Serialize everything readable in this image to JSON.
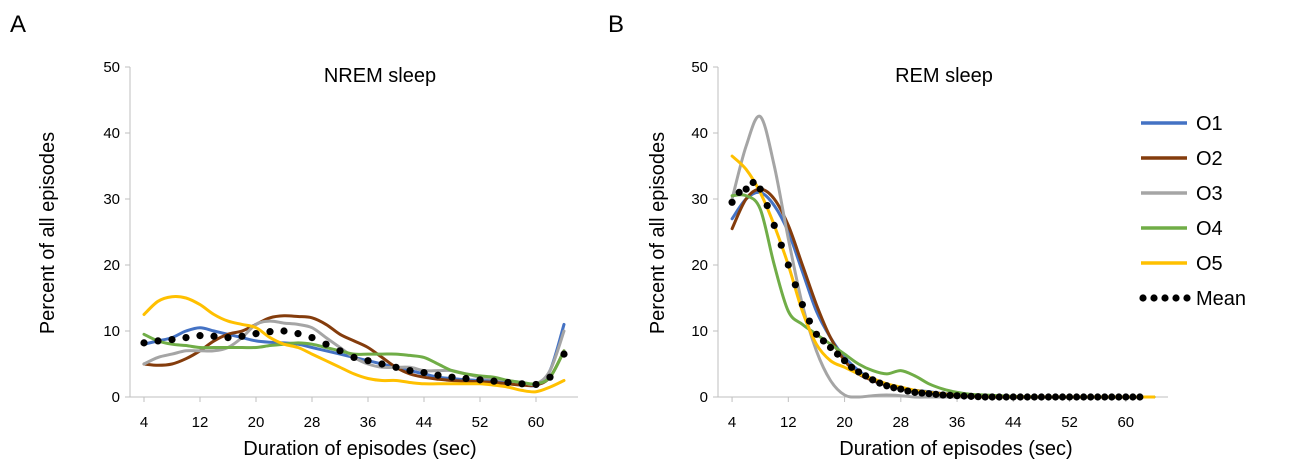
{
  "panels": [
    {
      "letter": "A",
      "title": "NREM sleep"
    },
    {
      "letter": "B",
      "title": "REM sleep"
    }
  ],
  "legend": [
    "O1",
    "O2",
    "O3",
    "O4",
    "O5",
    "Mean"
  ],
  "colors": {
    "O1": "#4472C4",
    "O2": "#843C0C",
    "O3": "#A5A5A5",
    "O4": "#70AD47",
    "O5": "#FFC000",
    "Mean": "#000000"
  },
  "chart_data": [
    {
      "type": "line",
      "title": "NREM sleep",
      "xlabel": "Duration of  episodes (sec)",
      "ylabel": "Percent of all episodes",
      "xlim": [
        2,
        66
      ],
      "ylim": [
        0,
        50
      ],
      "xticks": [
        4,
        12,
        20,
        28,
        36,
        44,
        52,
        60
      ],
      "yticks": [
        0,
        10,
        20,
        30,
        40,
        50
      ],
      "series": [
        {
          "name": "O1",
          "x": [
            4,
            6,
            8,
            10,
            12,
            14,
            16,
            18,
            20,
            22,
            24,
            26,
            28,
            30,
            32,
            34,
            36,
            38,
            40,
            42,
            44,
            46,
            48,
            50,
            52,
            54,
            56,
            58,
            60,
            62,
            64
          ],
          "y": [
            8,
            8.5,
            9,
            10,
            10.5,
            10,
            9.5,
            9,
            8.5,
            8.3,
            8.2,
            8,
            7.5,
            7,
            6.5,
            6,
            5.5,
            5,
            4.5,
            4,
            3.5,
            3,
            2.8,
            2.6,
            2.5,
            2.4,
            2.3,
            2,
            1.8,
            4,
            11
          ]
        },
        {
          "name": "O2",
          "x": [
            4,
            6,
            8,
            10,
            12,
            14,
            16,
            18,
            20,
            22,
            24,
            26,
            28,
            30,
            32,
            34,
            36,
            38,
            40,
            42,
            44,
            46,
            48,
            50,
            52,
            54,
            56,
            58,
            60,
            62,
            64
          ],
          "y": [
            5,
            4.8,
            5,
            5.8,
            7,
            8.5,
            9.5,
            10,
            11,
            12,
            12.3,
            12.2,
            12,
            11,
            9.5,
            8.5,
            7.5,
            6,
            4.5,
            3.5,
            3,
            2.7,
            2.5,
            2.4,
            2.3,
            2.2,
            2,
            1.8,
            1.8,
            3,
            7
          ]
        },
        {
          "name": "O3",
          "x": [
            4,
            6,
            8,
            10,
            12,
            14,
            16,
            18,
            20,
            22,
            24,
            26,
            28,
            30,
            32,
            34,
            36,
            38,
            40,
            42,
            44,
            46,
            48,
            50,
            52,
            54,
            56,
            58,
            60,
            62,
            64
          ],
          "y": [
            5,
            6,
            6.5,
            7,
            7,
            7,
            7.5,
            9,
            11,
            11.5,
            11.2,
            11,
            10.5,
            9,
            7.5,
            6,
            5,
            4.5,
            4.5,
            4.5,
            4,
            4,
            4,
            3.5,
            3,
            2.8,
            2.5,
            2.2,
            2,
            4,
            10
          ]
        },
        {
          "name": "O4",
          "x": [
            4,
            6,
            8,
            10,
            12,
            14,
            16,
            18,
            20,
            22,
            24,
            26,
            28,
            30,
            32,
            34,
            36,
            38,
            40,
            42,
            44,
            46,
            48,
            50,
            52,
            54,
            56,
            58,
            60,
            62,
            64
          ],
          "y": [
            9.5,
            8.5,
            8,
            7.8,
            7.5,
            7.5,
            7.5,
            7.5,
            7.5,
            7.8,
            8,
            8.2,
            8,
            7.5,
            7,
            6.5,
            6.5,
            6.5,
            6.5,
            6.3,
            6,
            5,
            4,
            3.5,
            3.2,
            3,
            2.5,
            2.2,
            2,
            3,
            7
          ]
        },
        {
          "name": "O5",
          "x": [
            4,
            6,
            8,
            10,
            12,
            14,
            16,
            18,
            20,
            22,
            24,
            26,
            28,
            30,
            32,
            34,
            36,
            38,
            40,
            42,
            44,
            46,
            48,
            50,
            52,
            54,
            56,
            58,
            60,
            62,
            64
          ],
          "y": [
            12.5,
            14.5,
            15.2,
            15,
            14,
            12.5,
            11.5,
            11,
            10.5,
            9,
            8,
            7.5,
            6.5,
            5.5,
            4.5,
            3.5,
            2.8,
            2.5,
            2.5,
            2.2,
            2,
            2,
            2,
            2,
            2,
            1.8,
            1.5,
            1,
            0.8,
            1.5,
            2.5
          ]
        },
        {
          "name": "Mean",
          "x": [
            4,
            6,
            8,
            10,
            12,
            14,
            16,
            18,
            20,
            22,
            24,
            26,
            28,
            30,
            32,
            34,
            36,
            38,
            40,
            42,
            44,
            46,
            48,
            50,
            52,
            54,
            56,
            58,
            60,
            62,
            64
          ],
          "y": [
            8.2,
            8.5,
            8.7,
            9,
            9.3,
            9.2,
            9,
            9.2,
            9.6,
            9.9,
            10,
            9.6,
            9,
            8,
            7,
            6,
            5.5,
            5,
            4.5,
            4,
            3.7,
            3.3,
            3,
            2.8,
            2.6,
            2.4,
            2.2,
            2,
            1.9,
            3,
            6.5
          ]
        }
      ]
    },
    {
      "type": "line",
      "title": "REM sleep",
      "xlabel": "Duration of  episodes (sec)",
      "ylabel": "Percent of all episodes",
      "xlim": [
        2,
        66
      ],
      "ylim": [
        0,
        50
      ],
      "xticks": [
        4,
        12,
        20,
        28,
        36,
        44,
        52,
        60
      ],
      "yticks": [
        0,
        10,
        20,
        30,
        40,
        50
      ],
      "series": [
        {
          "name": "O1",
          "x": [
            4,
            6,
            8,
            10,
            12,
            14,
            16,
            18,
            20,
            22,
            24,
            26,
            28,
            30,
            32,
            34,
            36,
            38,
            40,
            44,
            48,
            52,
            56,
            60,
            64
          ],
          "y": [
            27,
            30,
            31,
            29,
            25,
            19,
            13,
            9,
            6,
            4,
            2.5,
            1.8,
            1.3,
            1,
            0.8,
            0.5,
            0.3,
            0.2,
            0.1,
            0,
            0,
            0,
            0,
            0,
            0
          ]
        },
        {
          "name": "O2",
          "x": [
            4,
            6,
            8,
            10,
            12,
            14,
            16,
            18,
            20,
            22,
            24,
            26,
            28,
            30,
            32,
            34,
            36,
            38,
            40,
            44,
            48,
            52,
            56,
            60,
            64
          ],
          "y": [
            25.5,
            30,
            31.5,
            30,
            26,
            20,
            14,
            9,
            5.5,
            3.5,
            2.5,
            1.8,
            1.3,
            1,
            0.7,
            0.5,
            0.3,
            0.2,
            0.1,
            0,
            0,
            0,
            0,
            0,
            0
          ]
        },
        {
          "name": "O3",
          "x": [
            4,
            6,
            8,
            10,
            12,
            14,
            16,
            18,
            20,
            22,
            24,
            26,
            28,
            30,
            32,
            34,
            36,
            38,
            40,
            44,
            48,
            52,
            56,
            60,
            64
          ],
          "y": [
            30,
            38,
            42.5,
            35,
            24,
            14,
            7,
            2.5,
            0.3,
            0,
            0.2,
            0.3,
            0.2,
            0,
            0,
            0,
            0,
            0,
            0,
            0,
            0,
            0,
            0,
            0,
            0
          ]
        },
        {
          "name": "O4",
          "x": [
            4,
            6,
            8,
            10,
            12,
            14,
            16,
            18,
            20,
            22,
            24,
            26,
            28,
            30,
            32,
            34,
            36,
            38,
            40,
            44,
            48,
            52,
            56,
            60,
            64
          ],
          "y": [
            30.5,
            30.5,
            28.5,
            20,
            13,
            11,
            9.5,
            8,
            6.5,
            5,
            4,
            3.5,
            4,
            3.2,
            2,
            1.2,
            0.7,
            0.4,
            0.3,
            0.1,
            0,
            0,
            0,
            0,
            0
          ]
        },
        {
          "name": "O5",
          "x": [
            4,
            6,
            8,
            10,
            12,
            14,
            16,
            18,
            20,
            22,
            24,
            26,
            28,
            30,
            32,
            34,
            36,
            38,
            40,
            44,
            48,
            52,
            56,
            60,
            64
          ],
          "y": [
            36.5,
            34.5,
            31,
            26,
            20,
            13,
            8,
            5.5,
            4.5,
            3.5,
            2.8,
            2,
            1.5,
            1,
            0.7,
            0.4,
            0.2,
            0.1,
            0,
            0,
            0,
            0,
            0,
            0,
            0
          ]
        },
        {
          "name": "Mean",
          "x": [
            4,
            5,
            6,
            7,
            8,
            9,
            10,
            11,
            12,
            13,
            14,
            15,
            16,
            17,
            18,
            19,
            20,
            21,
            22,
            23,
            24,
            25,
            26,
            27,
            28,
            29,
            30,
            31,
            32,
            33,
            34,
            35,
            36,
            37,
            38,
            39,
            40,
            41,
            42,
            43,
            44,
            45,
            46,
            47,
            48,
            49,
            50,
            51,
            52,
            53,
            54,
            55,
            56,
            57,
            58,
            59,
            60,
            61,
            62
          ],
          "y": [
            29.5,
            31,
            31.5,
            32.5,
            31.5,
            29,
            26,
            23,
            20,
            17,
            14,
            11.5,
            9.5,
            8.5,
            7.5,
            6.5,
            5.5,
            4.5,
            3.8,
            3.2,
            2.6,
            2.1,
            1.7,
            1.4,
            1.2,
            0.9,
            0.7,
            0.6,
            0.5,
            0.4,
            0.3,
            0.25,
            0.2,
            0.15,
            0.1,
            0.05,
            0,
            0,
            0,
            0,
            0,
            0,
            0,
            0,
            0,
            0,
            0,
            0,
            0,
            0,
            0,
            0,
            0,
            0,
            0,
            0,
            0,
            0,
            0
          ]
        }
      ]
    }
  ]
}
